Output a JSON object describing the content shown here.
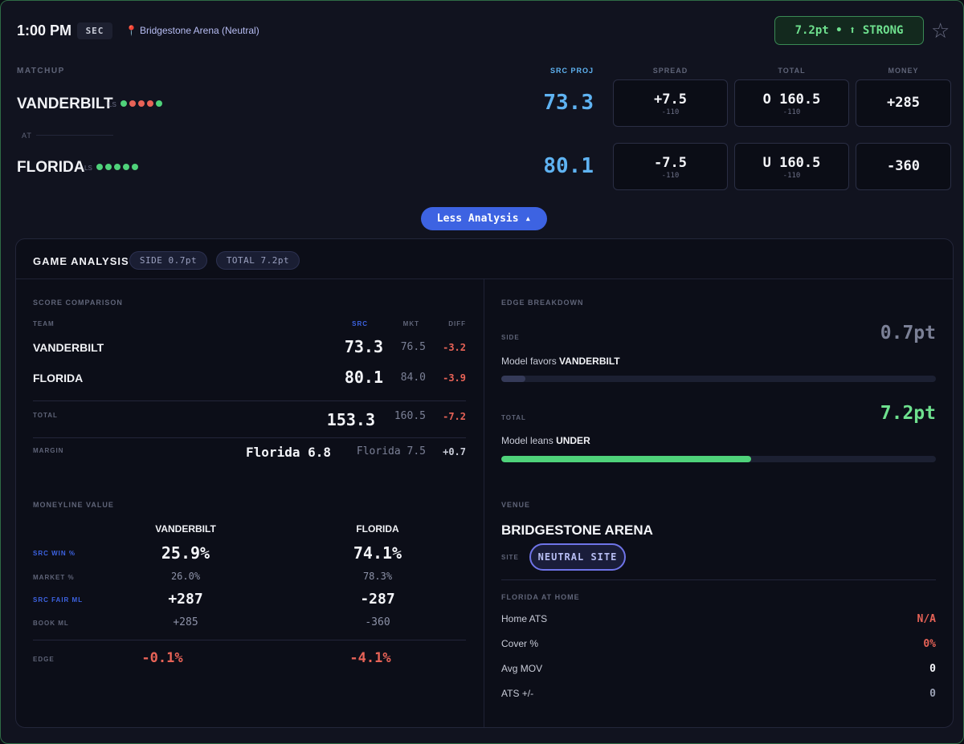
{
  "header": {
    "time": "1:00 PM",
    "conference": "SEC",
    "venue": "Bridgestone Arena (Neutral)",
    "edge_badge": "7.2pt • ⬆ STRONG",
    "favorite_icon": "star-outline-icon"
  },
  "columns": {
    "matchup": "MATCHUP",
    "src_proj": "SRC PROJ",
    "spread": "SPREAD",
    "total": "TOTAL",
    "money": "MONEY"
  },
  "teams": [
    {
      "name": "VANDERBILT",
      "ls_label": "LS",
      "last5": [
        "W",
        "L",
        "L",
        "L",
        "W"
      ],
      "proj": "73.3",
      "spread": "+7.5",
      "spread_odds": "-110",
      "total": "O 160.5",
      "total_odds": "-110",
      "money": "+285"
    },
    {
      "name": "FLORIDA",
      "ls_label": "LS",
      "last5": [
        "W",
        "W",
        "W",
        "W",
        "W"
      ],
      "proj": "80.1",
      "spread": "-7.5",
      "spread_odds": "-110",
      "total": "U 160.5",
      "total_odds": "-110",
      "money": "-360"
    }
  ],
  "at_label": "AT",
  "less_analysis_button": "Less Analysis ▴",
  "analysis": {
    "title": "GAME ANALYSIS",
    "side_pill": "SIDE 0.7pt",
    "total_pill": "TOTAL 7.2pt",
    "score_comparison": {
      "label": "SCORE COMPARISON",
      "headers": {
        "team": "TEAM",
        "src": "SRC",
        "mkt": "MKT",
        "diff": "DIFF"
      },
      "rows": [
        {
          "team": "VANDERBILT",
          "src": "73.3",
          "mkt": "76.5",
          "diff": "-3.2"
        },
        {
          "team": "FLORIDA",
          "src": "80.1",
          "mkt": "84.0",
          "diff": "-3.9"
        }
      ],
      "total": {
        "label": "TOTAL",
        "src": "153.3",
        "mkt": "160.5",
        "diff": "-7.2"
      },
      "margin": {
        "label": "MARGIN",
        "src": "Florida 6.8",
        "mkt": "Florida 7.5",
        "diff": "+0.7"
      }
    },
    "moneyline": {
      "label": "MONEYLINE VALUE",
      "teams": [
        "VANDERBILT",
        "FLORIDA"
      ],
      "src_win_label": "SRC WIN %",
      "src_win": [
        "25.9%",
        "74.1%"
      ],
      "market_label": "MARKET %",
      "market": [
        "26.0%",
        "78.3%"
      ],
      "fair_ml_label": "SRC FAIR ML",
      "fair_ml": [
        "+287",
        "-287"
      ],
      "book_ml_label": "BOOK ML",
      "book_ml": [
        "+285",
        "-360"
      ],
      "edge_label": "EDGE",
      "edge": [
        "-0.1%",
        "-4.1%"
      ]
    },
    "edge_breakdown": {
      "label": "EDGE BREAKDOWN",
      "side_label": "SIDE",
      "side_value": "0.7pt",
      "side_note_prefix": "Model favors",
      "side_note_team": "VANDERBILT",
      "side_fill_fraction": 0.056,
      "total_label": "TOTAL",
      "total_value": "7.2pt",
      "total_note_prefix": "Model leans",
      "total_note_dir": "UNDER",
      "total_fill_fraction": 0.575
    },
    "venue": {
      "label": "VENUE",
      "name": "BRIDGESTONE ARENA",
      "site_label": "SITE",
      "site_value": "NEUTRAL SITE",
      "home_label": "FLORIDA AT HOME",
      "stats": [
        {
          "label": "Home ATS",
          "value": "N/A",
          "color": "#e86357"
        },
        {
          "label": "Cover %",
          "value": "0%",
          "color": "#e86357"
        },
        {
          "label": "Avg MOV",
          "value": "0",
          "color": "#f4f5f9"
        },
        {
          "label": "ATS +/-",
          "value": "0",
          "color": "#9aa0b3"
        }
      ]
    }
  },
  "colors": {
    "accent_blue": "#3d63e2",
    "proj_blue": "#5fb3f2",
    "strong_green": "#6ee08e",
    "negative_red": "#e86357",
    "total_bar": "#4fd27a",
    "side_bar": "#353a58"
  }
}
